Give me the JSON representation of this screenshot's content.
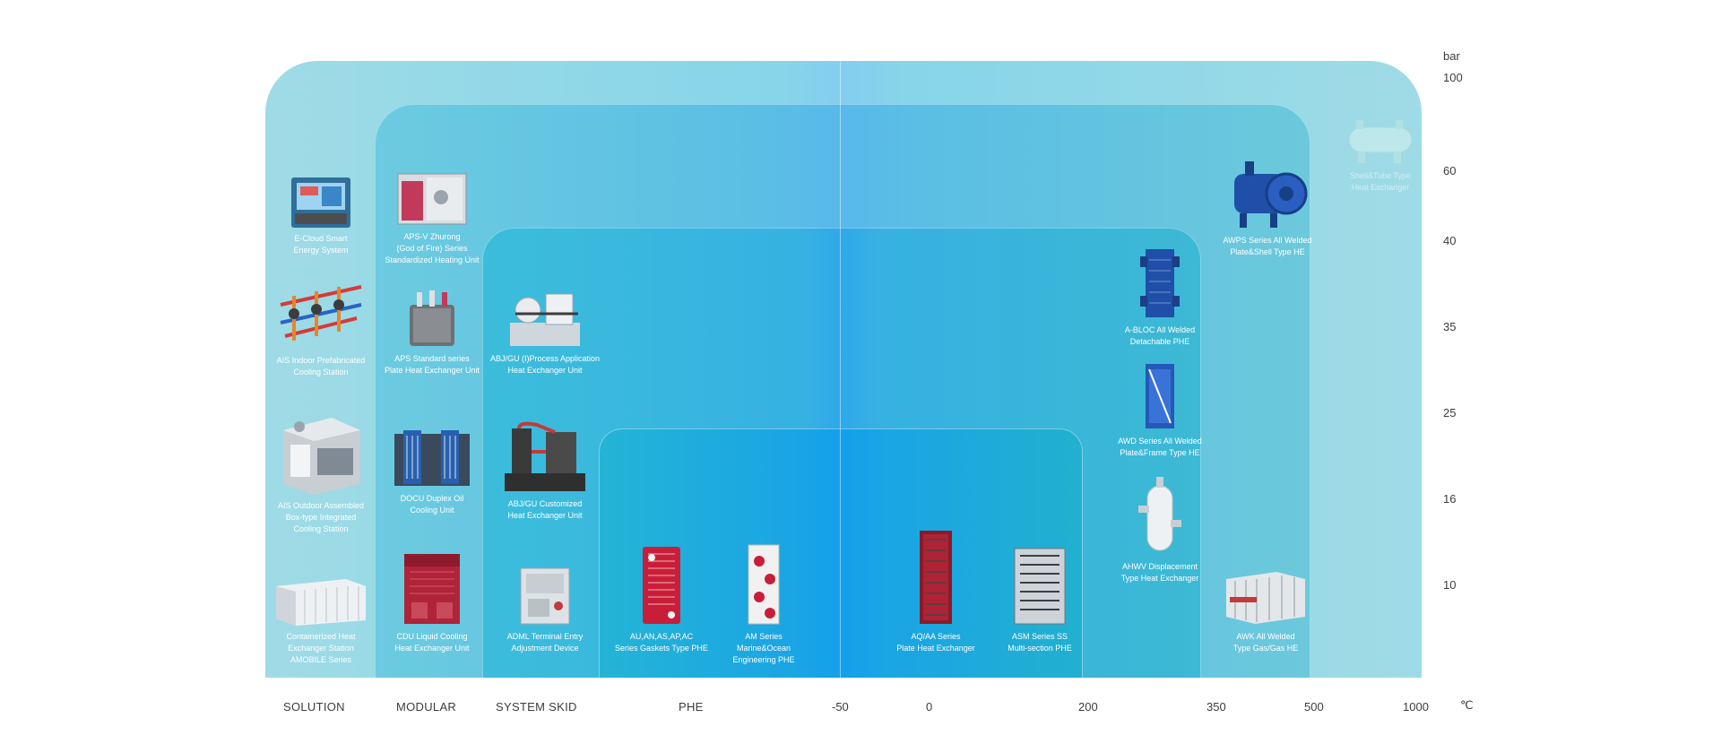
{
  "units": {
    "pressure": "bar",
    "temperature": "℃"
  },
  "pressure_ticks": [
    "100",
    "60",
    "40",
    "35",
    "25",
    "16",
    "10"
  ],
  "temperature_ticks": [
    "-50",
    "0",
    "200",
    "350",
    "500",
    "1000"
  ],
  "categories": [
    "SOLUTION",
    "MODULAR",
    "SYSTEM SKID",
    "PHE"
  ],
  "products": {
    "ecloud": "E-Cloud Smart\nEnergy System",
    "ais_indoor": "AIS Indoor Prefabricated\nCooling Station",
    "ais_outdoor": "AIS Outdoor Assembled\nBox-type Integrated\nCooling Station",
    "container": "Containerized Heat\nExchanger Station\nAMOBILE Series",
    "apsv": "APS-V Zhurong\n(God of Fire) Series\nStandardized Heating Unit",
    "aps": "APS Standard series\nPlate Heat Exchanger Unit",
    "docu": "DOCU Duplex Oil\nCooling Unit",
    "cdu": "CDU Liquid Cooling\nHeat Exchanger Unit",
    "abj_process": "ABJ/GU (I)Process Application\nHeat Exchanger Unit",
    "abj_custom": "ABJ/GU Customized\nHeat Exchanger Unit",
    "adml": "ADML Terminal Entry\nAdjustment Device",
    "au": "AU,AN,AS,AP,AC\nSeries Gaskets Type PHE",
    "am": "AM Series\nMarine&Ocean\nEngineering PHE",
    "aq": "AQ/AA Series\nPlate Heat Exchanger",
    "asm": "ASM Series SS\nMulti-section PHE",
    "abloc": "A-BLOC All Welded\nDetachable PHE",
    "awd": "AWD Series All Welded\nPlate&Frame Type HE",
    "ahwv": "AHWV Displacement\nType Heat Exchanger",
    "awps": "AWPS Series All Welded\nPlate&Shell Type HE",
    "awk": "AWK All Welded\nType Gas/Gas HE",
    "shell": "Shell&Tube Type\nHeat Exchanger"
  }
}
